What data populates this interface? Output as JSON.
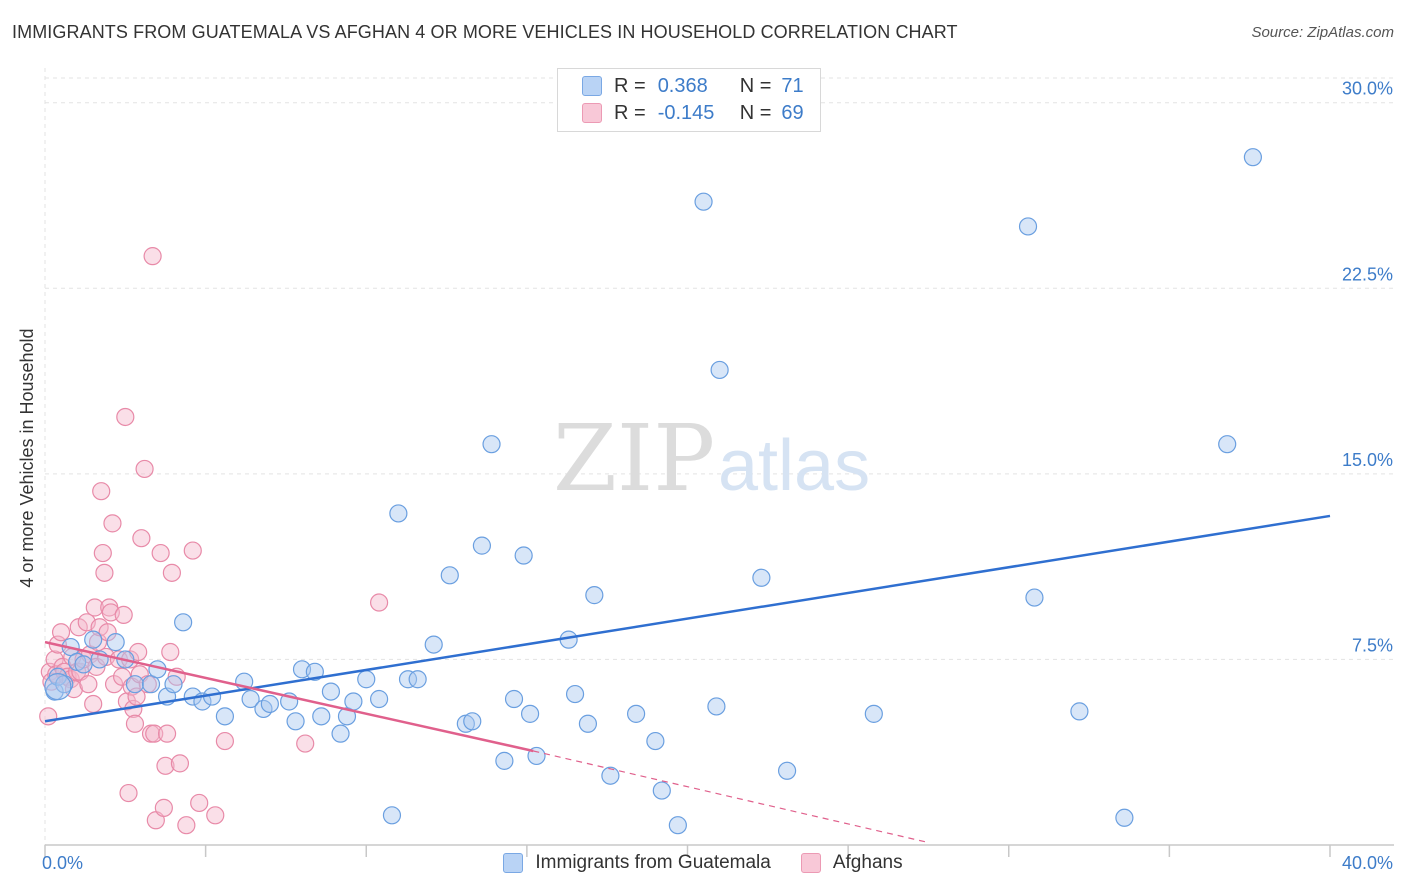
{
  "header": {
    "title": "IMMIGRANTS FROM GUATEMALA VS AFGHAN 4 OR MORE VEHICLES IN HOUSEHOLD CORRELATION CHART",
    "source": "Source: ZipAtlas.com"
  },
  "watermark": {
    "zip": "ZIP",
    "atlas": "atlas"
  },
  "legend": {
    "rows": [
      {
        "r_label": "R =",
        "r_value": "0.368",
        "n_label": "N =",
        "n_value": "71",
        "color": "#a9c8f0"
      },
      {
        "r_label": "R =",
        "r_value": "-0.145",
        "n_label": "N =",
        "n_value": "69",
        "color": "#f5b8cb"
      }
    ]
  },
  "chart_data": {
    "type": "scatter",
    "title": "IMMIGRANTS FROM GUATEMALA VS AFGHAN 4 OR MORE VEHICLES IN HOUSEHOLD CORRELATION CHART",
    "xlabel": "",
    "ylabel": "4 or more Vehicles in Household",
    "xlim": [
      0,
      40
    ],
    "ylim": [
      0,
      31
    ],
    "x_tick_labels": [
      "0.0%",
      "40.0%"
    ],
    "y_ticks": [
      7.5,
      15.0,
      22.5,
      30.0
    ],
    "y_tick_labels": [
      "7.5%",
      "15.0%",
      "22.5%",
      "30.0%"
    ],
    "grid": true,
    "legend_position": "top-center",
    "colors": {
      "guatemala": "#6a9fe0",
      "guatemala_fill": "#a9c8f0",
      "afghans": "#e88aa8",
      "afghans_fill": "#f5b8cb",
      "trend_blue": "#2f6fd0",
      "trend_pink": "#e0608c"
    },
    "series": [
      {
        "name": "Immigrants from Guatemala",
        "trend": {
          "x": [
            0,
            40
          ],
          "y": [
            5.0,
            13.3
          ]
        },
        "points": [
          [
            0.3,
            6.2
          ],
          [
            0.4,
            6.8
          ],
          [
            0.6,
            6.5
          ],
          [
            0.8,
            8.0
          ],
          [
            1.0,
            7.4
          ],
          [
            1.2,
            7.3
          ],
          [
            1.5,
            8.3
          ],
          [
            1.7,
            7.5
          ],
          [
            2.2,
            8.2
          ],
          [
            2.5,
            7.5
          ],
          [
            2.8,
            6.5
          ],
          [
            3.3,
            6.5
          ],
          [
            3.5,
            7.1
          ],
          [
            3.8,
            6.0
          ],
          [
            4.0,
            6.5
          ],
          [
            4.3,
            9.0
          ],
          [
            4.6,
            6.0
          ],
          [
            4.9,
            5.8
          ],
          [
            5.2,
            6.0
          ],
          [
            5.6,
            5.2
          ],
          [
            6.2,
            6.6
          ],
          [
            6.4,
            5.9
          ],
          [
            6.8,
            5.5
          ],
          [
            7.0,
            5.7
          ],
          [
            7.6,
            5.8
          ],
          [
            7.8,
            5.0
          ],
          [
            8.0,
            7.1
          ],
          [
            8.4,
            7.0
          ],
          [
            8.6,
            5.2
          ],
          [
            8.9,
            6.2
          ],
          [
            9.2,
            4.5
          ],
          [
            9.4,
            5.2
          ],
          [
            9.6,
            5.8
          ],
          [
            10.0,
            6.7
          ],
          [
            10.4,
            5.9
          ],
          [
            10.8,
            1.2
          ],
          [
            11.0,
            13.4
          ],
          [
            11.3,
            6.7
          ],
          [
            11.6,
            6.7
          ],
          [
            12.1,
            8.1
          ],
          [
            12.6,
            10.9
          ],
          [
            13.1,
            4.9
          ],
          [
            13.3,
            5.0
          ],
          [
            13.6,
            12.1
          ],
          [
            13.9,
            16.2
          ],
          [
            14.3,
            3.4
          ],
          [
            14.6,
            5.9
          ],
          [
            14.9,
            11.7
          ],
          [
            15.1,
            5.3
          ],
          [
            15.3,
            3.6
          ],
          [
            16.3,
            8.3
          ],
          [
            16.5,
            6.1
          ],
          [
            16.9,
            4.9
          ],
          [
            17.1,
            10.1
          ],
          [
            17.6,
            2.8
          ],
          [
            18.4,
            5.3
          ],
          [
            19.0,
            4.2
          ],
          [
            19.2,
            2.2
          ],
          [
            19.7,
            0.8
          ],
          [
            20.5,
            26.0
          ],
          [
            20.9,
            5.6
          ],
          [
            21.0,
            19.2
          ],
          [
            22.3,
            10.8
          ],
          [
            23.1,
            3.0
          ],
          [
            25.8,
            5.3
          ],
          [
            30.6,
            25.0
          ],
          [
            30.8,
            10.0
          ],
          [
            32.2,
            5.4
          ],
          [
            33.6,
            1.1
          ],
          [
            36.8,
            16.2
          ],
          [
            37.6,
            27.8
          ]
        ]
      },
      {
        "name": "Afghans",
        "trend": {
          "x": [
            0,
            15.2
          ],
          "y": [
            8.2,
            3.8
          ]
        },
        "trend_extension": {
          "x": [
            15.2,
            27.5
          ],
          "y": [
            3.8,
            0.1
          ]
        },
        "points": [
          [
            0.1,
            5.2
          ],
          [
            0.15,
            7.0
          ],
          [
            0.2,
            6.6
          ],
          [
            0.3,
            7.5
          ],
          [
            0.35,
            6.9
          ],
          [
            0.4,
            8.1
          ],
          [
            0.5,
            8.6
          ],
          [
            0.55,
            7.2
          ],
          [
            0.6,
            7.0
          ],
          [
            0.7,
            6.8
          ],
          [
            0.8,
            6.7
          ],
          [
            0.85,
            7.6
          ],
          [
            0.9,
            6.3
          ],
          [
            1.0,
            7.0
          ],
          [
            1.05,
            8.8
          ],
          [
            1.1,
            7.0
          ],
          [
            1.2,
            7.5
          ],
          [
            1.3,
            9.0
          ],
          [
            1.35,
            6.5
          ],
          [
            1.4,
            7.7
          ],
          [
            1.5,
            5.7
          ],
          [
            1.55,
            9.6
          ],
          [
            1.6,
            7.2
          ],
          [
            1.65,
            8.2
          ],
          [
            1.7,
            8.8
          ],
          [
            1.75,
            14.3
          ],
          [
            1.8,
            11.8
          ],
          [
            1.85,
            11.0
          ],
          [
            1.9,
            7.6
          ],
          [
            1.95,
            8.6
          ],
          [
            2.0,
            9.6
          ],
          [
            2.05,
            9.4
          ],
          [
            2.1,
            13.0
          ],
          [
            2.15,
            6.5
          ],
          [
            2.3,
            7.5
          ],
          [
            2.4,
            6.8
          ],
          [
            2.45,
            9.3
          ],
          [
            2.5,
            17.3
          ],
          [
            2.55,
            5.8
          ],
          [
            2.6,
            2.1
          ],
          [
            2.65,
            7.5
          ],
          [
            2.7,
            6.4
          ],
          [
            2.75,
            5.5
          ],
          [
            2.8,
            4.9
          ],
          [
            2.85,
            6.0
          ],
          [
            2.9,
            7.8
          ],
          [
            2.95,
            6.9
          ],
          [
            3.0,
            12.4
          ],
          [
            3.1,
            15.2
          ],
          [
            3.2,
            6.5
          ],
          [
            3.3,
            4.5
          ],
          [
            3.35,
            23.8
          ],
          [
            3.4,
            4.5
          ],
          [
            3.45,
            1.0
          ],
          [
            3.6,
            11.8
          ],
          [
            3.7,
            1.5
          ],
          [
            3.75,
            3.2
          ],
          [
            3.8,
            4.5
          ],
          [
            3.9,
            7.8
          ],
          [
            3.95,
            11.0
          ],
          [
            4.1,
            6.8
          ],
          [
            4.2,
            3.3
          ],
          [
            4.4,
            0.8
          ],
          [
            4.6,
            11.9
          ],
          [
            4.8,
            1.7
          ],
          [
            5.3,
            1.2
          ],
          [
            5.6,
            4.2
          ],
          [
            8.1,
            4.1
          ],
          [
            10.4,
            9.8
          ]
        ]
      }
    ]
  },
  "bottom_legend": {
    "items": [
      {
        "label": "Immigrants from Guatemala"
      },
      {
        "label": "Afghans"
      }
    ]
  }
}
